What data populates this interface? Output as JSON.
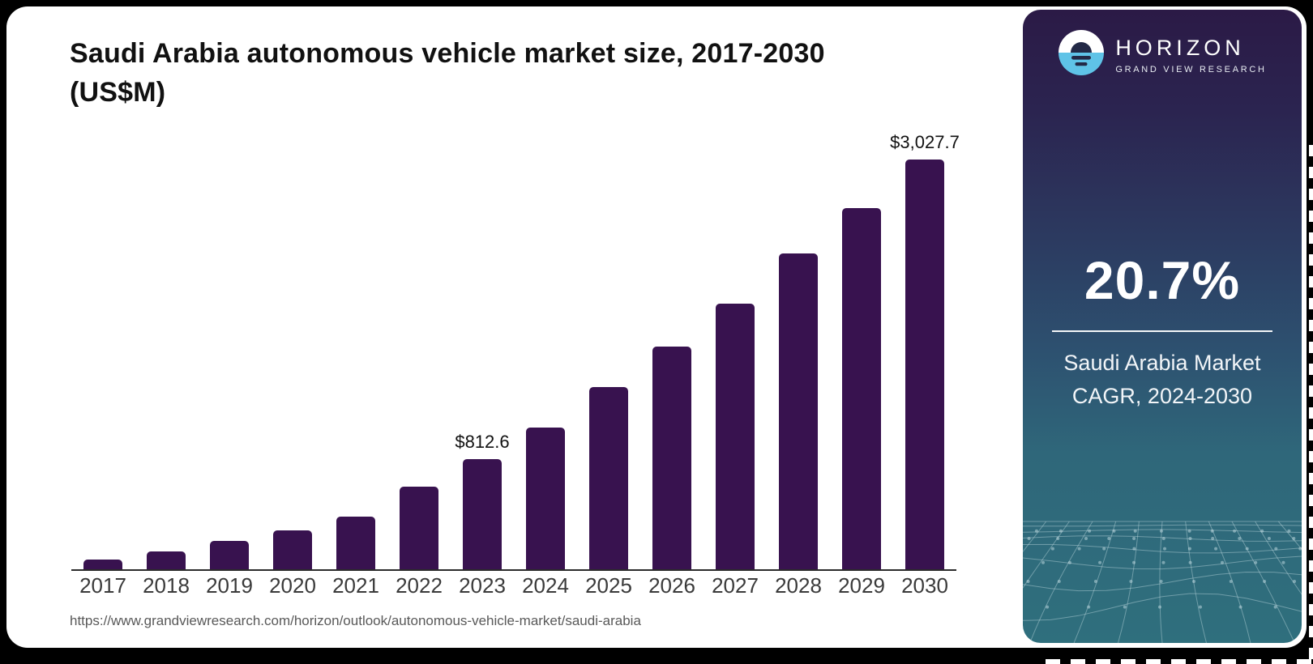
{
  "chart": {
    "title_line1": "Saudi Arabia autonomous vehicle market size, 2017-2030",
    "title_line2": "(US$M)",
    "source_url": "https://www.grandviewresearch.com/horizon/outlook/autonomous-vehicle-market/saudi-arabia",
    "bar_color": "#38124f",
    "axis_color": "#2b2b2b"
  },
  "chart_data": {
    "type": "bar",
    "title": "Saudi Arabia autonomous vehicle market size, 2017-2030 (US$M)",
    "unit": "US$M",
    "categories": [
      "2017",
      "2018",
      "2019",
      "2020",
      "2021",
      "2022",
      "2023",
      "2024",
      "2025",
      "2026",
      "2027",
      "2028",
      "2029",
      "2030"
    ],
    "values": [
      75,
      130,
      208,
      285,
      387,
      612,
      812.6,
      1050,
      1345,
      1645,
      1965,
      2335,
      2670,
      3027.7
    ],
    "data_labels": [
      {
        "category": "2023",
        "label": "$812.6"
      },
      {
        "category": "2030",
        "label": "$3,027.7"
      }
    ],
    "ylim": [
      0,
      3027.7
    ],
    "grid": false,
    "legend": false,
    "bar_color": "#38124f"
  },
  "sidebar": {
    "logo": {
      "brand": "HORIZON",
      "subtitle": "GRAND VIEW RESEARCH"
    },
    "stat": {
      "value": "20.7%",
      "caption_line1": "Saudi Arabia Market",
      "caption_line2": "CAGR, 2024-2030"
    },
    "colors": {
      "gradient_top": "#2b1a46",
      "gradient_middle": "#2d5170",
      "gradient_bottom": "#2f6f7d",
      "logo_blue": "#5fc3e7",
      "logo_navy": "#232946",
      "mesh_line": "#c7e0e5"
    }
  }
}
